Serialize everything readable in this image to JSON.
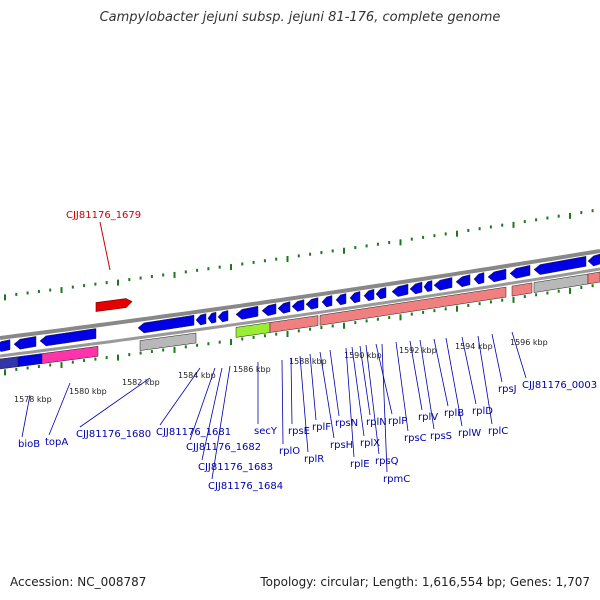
{
  "header": {
    "title": "Campylobacter jejuni subsp. jejuni 81-176, complete genome"
  },
  "footer": {
    "accession": "Accession: NC_008787",
    "summary": "Topology: circular; Length: 1,616,554 bp; Genes: 1,707"
  },
  "colors": {
    "forward_gene": "#0000e6",
    "selected_gene": "#e60000",
    "rrna_block": "#f08080",
    "highlight_gene": "#99ee33",
    "pseudo_gene": "#b8b8b8",
    "magenta_block": "#ff33aa",
    "label_blue": "#0000aa",
    "label_red": "#cc0000",
    "tick_green": "#1a7a1a"
  },
  "highlighted_gene": "CJJ81176_1679",
  "scale_ticks": [
    "1578 kbp",
    "1580 kbp",
    "1582 kbp",
    "1584 kbp",
    "1586 kbp",
    "1588 kbp",
    "1590 kbp",
    "1592 kbp",
    "1594 kbp",
    "1596 kbp"
  ],
  "gene_labels": [
    "bioB",
    "topA",
    "CJJ81176_1680",
    "CJJ81176_1681",
    "CJJ81176_1682",
    "CJJ81176_1683",
    "CJJ81176_1684",
    "secY",
    "rplO",
    "rpsE",
    "rplR",
    "rplF",
    "rpsH",
    "rpsN",
    "rplE",
    "rplX",
    "rplN",
    "rpsQ",
    "rplP",
    "rpmC",
    "rpsC",
    "rplV",
    "rpsS",
    "rplB",
    "rplW",
    "rplD",
    "rplC",
    "rpsJ",
    "CJJ81176_0003"
  ]
}
